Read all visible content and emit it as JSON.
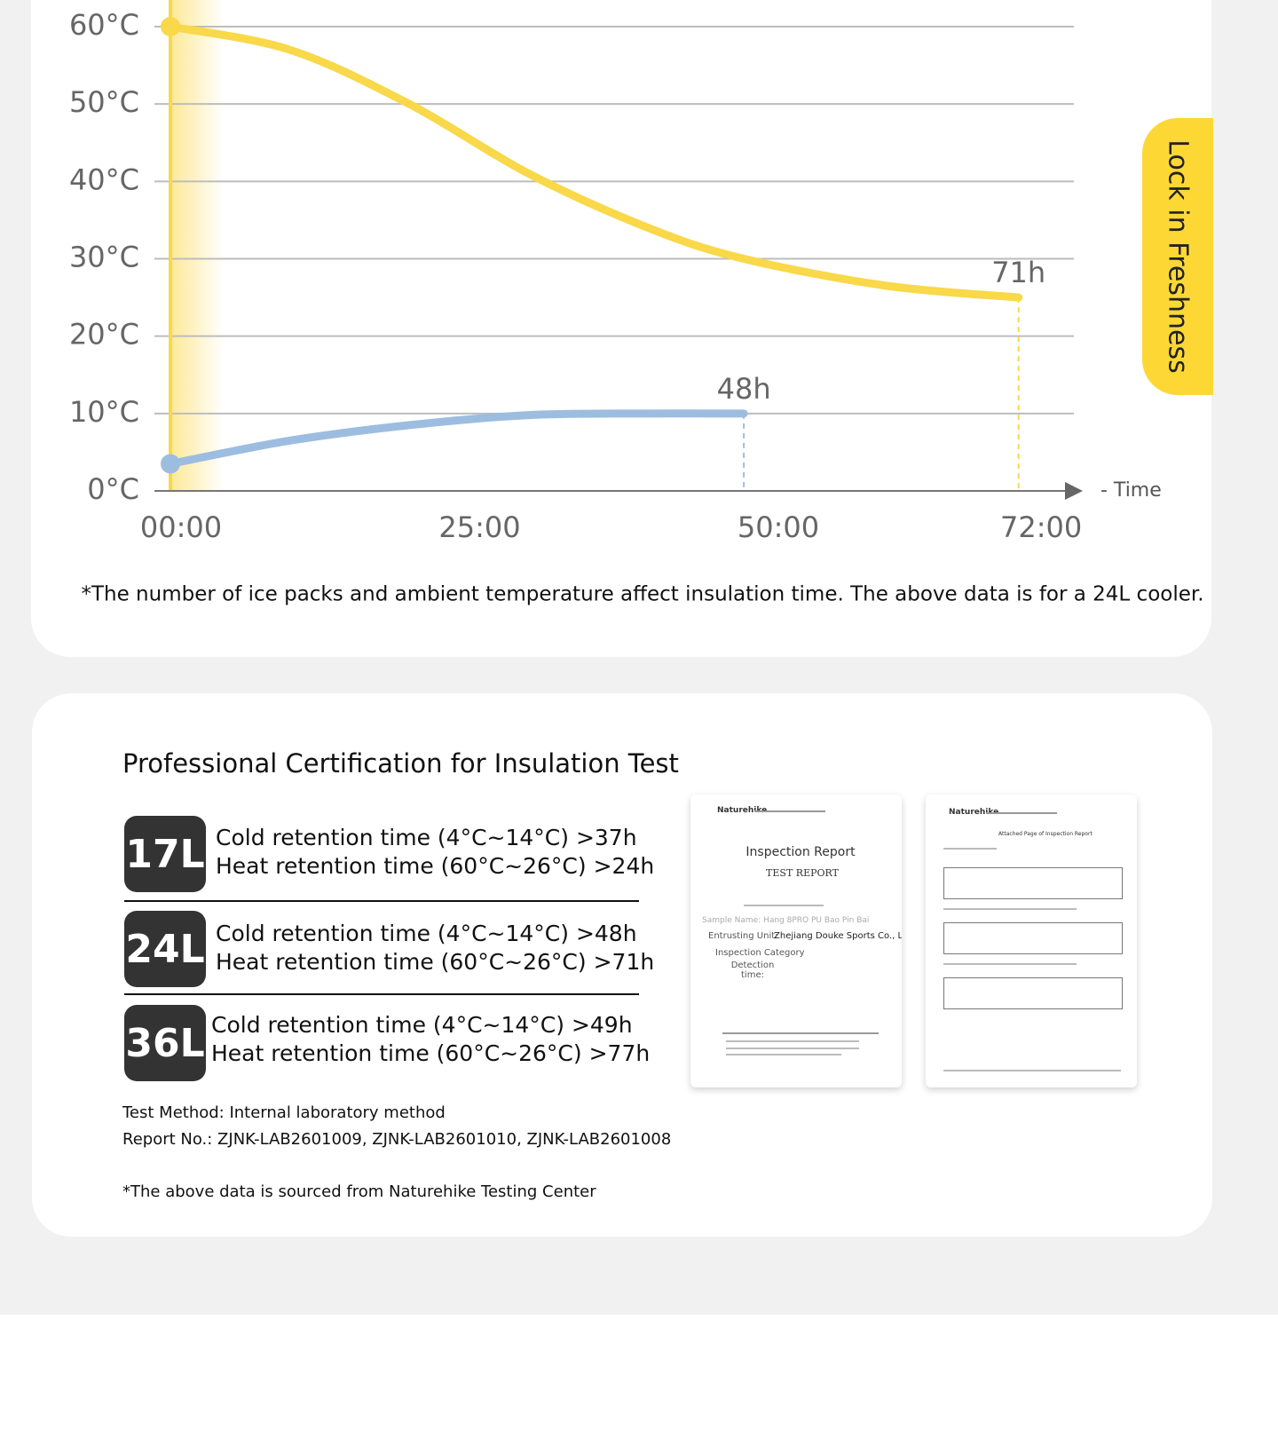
{
  "chart_data": {
    "type": "line",
    "xlim": [
      0,
      76
    ],
    "ylim": [
      0,
      60
    ],
    "xticks": [
      {
        "value": 0,
        "label": "00:00"
      },
      {
        "value": 25,
        "label": "25:00"
      },
      {
        "value": 50,
        "label": "50:00"
      },
      {
        "value": 72,
        "label": "72:00"
      }
    ],
    "yticks": [
      {
        "value": 0,
        "label": "0°C"
      },
      {
        "value": 10,
        "label": "10°C"
      },
      {
        "value": 20,
        "label": "20°C"
      },
      {
        "value": 30,
        "label": "30°C"
      },
      {
        "value": 40,
        "label": "40°C"
      },
      {
        "value": 50,
        "label": "50°C"
      },
      {
        "value": 60,
        "label": "60°C"
      }
    ],
    "grid": true,
    "xlabel": "- Time",
    "series": [
      {
        "color": "#f9d849",
        "end_label": "71h",
        "x": [
          0,
          10,
          20,
          30,
          40,
          48,
          60,
          71
        ],
        "values": [
          60,
          57,
          50,
          41,
          34,
          30,
          26.5,
          25
        ]
      },
      {
        "color": "#9dbde0",
        "end_label": "48h",
        "x": [
          0,
          10,
          20,
          30,
          40,
          48
        ],
        "values": [
          3.5,
          6.5,
          8.5,
          9.8,
          10,
          10
        ]
      }
    ],
    "footnote": "*The number of ice packs and ambient temperature affect insulation time. The above data is for a 24L cooler."
  },
  "side_tab": "Lock in Freshness",
  "certification": {
    "title": "Professional Certification for Insulation Test",
    "items": [
      {
        "size": "17L",
        "cold": "Cold retention time (4°C~14°C) >37h",
        "heat": "Heat retention time (60°C~26°C) >24h"
      },
      {
        "size": "24L",
        "cold": "Cold retention time (4°C~14°C) >48h",
        "heat": "Heat retention time (60°C~26°C) >71h"
      },
      {
        "size": "36L",
        "cold": "Cold retention time (4°C~14°C) >49h",
        "heat": "Heat retention time (60°C~26°C) >77h"
      }
    ],
    "test_method": "Test Method: Internal laboratory method",
    "report_no": "Report No.: ZJNK-LAB2601009, ZJNK-LAB2601010, ZJNK-LAB2601008",
    "note": "*The above data is sourced from Naturehike Testing Center"
  },
  "documents": [
    {
      "logo": "Naturehike",
      "title": "Inspection Report",
      "subtitle": "TEST REPORT",
      "sample": "Sample Name: Hang 8PRO PU Bao Pin Bai",
      "entrusting_label": "Entrusting Unit:",
      "entrusting": "Zhejiang Douke Sports Co., Ltd.",
      "category_label": "Inspection Category",
      "time_label": "Detection time:"
    },
    {
      "logo": "Naturehike",
      "title": "Attached Page of Inspection Report"
    }
  ]
}
